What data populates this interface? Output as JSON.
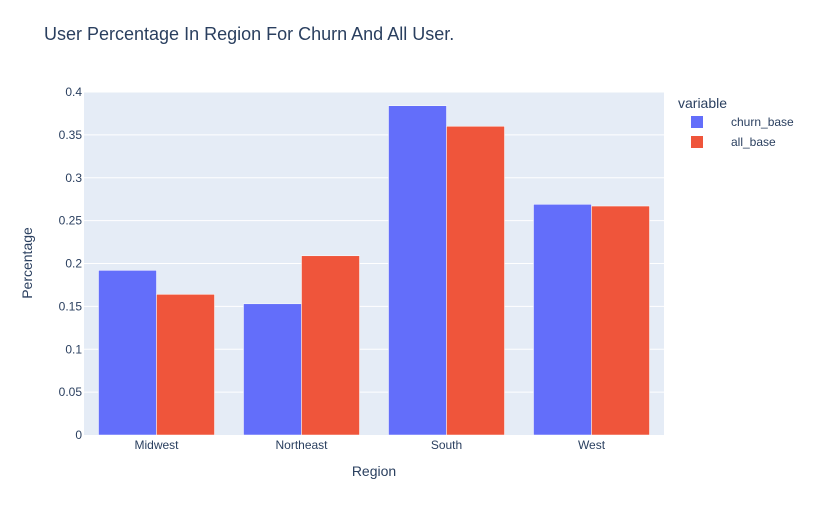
{
  "chart_data": {
    "type": "bar",
    "title": "User Percentage In Region For Churn And All User.",
    "xlabel": "Region",
    "ylabel": "Percentage",
    "categories": [
      "Midwest",
      "Northeast",
      "South",
      "West"
    ],
    "series": [
      {
        "name": "churn_base",
        "values": [
          0.192,
          0.153,
          0.384,
          0.269
        ],
        "color": "#636efa"
      },
      {
        "name": "all_base",
        "values": [
          0.164,
          0.209,
          0.36,
          0.267
        ],
        "color": "#ef553b"
      }
    ],
    "ylim": [
      0,
      0.4
    ],
    "yticks": [
      0,
      0.05,
      0.1,
      0.15,
      0.2,
      0.25,
      0.3,
      0.35,
      0.4
    ],
    "ytick_labels": [
      "0",
      "0.05",
      "0.1",
      "0.15",
      "0.2",
      "0.25",
      "0.3",
      "0.35",
      "0.4"
    ],
    "legend": {
      "title": "variable",
      "placement": "right"
    },
    "grid": true,
    "colors": {
      "plot_bg": "#e5ecf6",
      "grid": "#ffffff",
      "text": "#2a3f5f"
    }
  }
}
